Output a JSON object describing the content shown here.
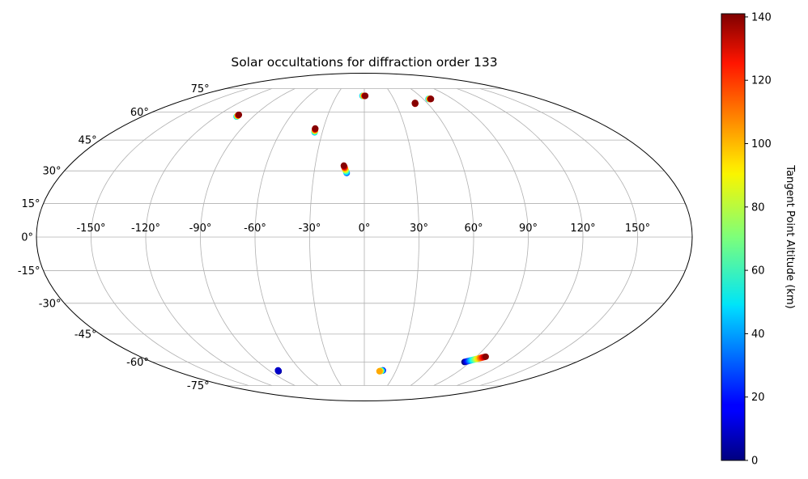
{
  "chart_data": {
    "type": "scatter",
    "projection": "mollweide",
    "title": "Solar occultations for diffraction order 133",
    "xlabel": "",
    "ylabel": "",
    "grid": true,
    "x_ticks": [
      "-150°",
      "-120°",
      "-90°",
      "-60°",
      "-30°",
      "0°",
      "30°",
      "60°",
      "90°",
      "120°",
      "150°"
    ],
    "y_ticks": [
      "75°",
      "60°",
      "45°",
      "30°",
      "15°",
      "0°",
      "-15°",
      "-30°",
      "-45°",
      "-60°",
      "-75°"
    ],
    "colorbar": {
      "label": "Tangent Point Altitude (km)",
      "colormap": "jet",
      "range": [
        0,
        141
      ],
      "ticks": [
        "0",
        "20",
        "40",
        "60",
        "80",
        "100",
        "120",
        "140"
      ]
    },
    "clusters": [
      {
        "lon_start": -103.5,
        "lat_start": 57.5,
        "lon_end": -103.5,
        "lat_end": 58.5,
        "alt_start": 40,
        "alt_end": 140
      },
      {
        "lon_start": -35.5,
        "lat_start": 49.0,
        "lon_end": -36.0,
        "lat_end": 51.0,
        "alt_start": 40,
        "alt_end": 140
      },
      {
        "lon_start": -10.5,
        "lat_start": 29.0,
        "lon_end": -12.5,
        "lat_end": 32.5,
        "alt_start": 30,
        "alt_end": 140
      },
      {
        "lon_start": -2.0,
        "lat_start": 70.0,
        "lon_end": 1.0,
        "lat_end": 70.0,
        "alt_start": 40,
        "alt_end": 140
      },
      {
        "lon_start": 48.0,
        "lat_start": 65.0,
        "lon_end": 48.5,
        "lat_end": 65.5,
        "alt_start": 135,
        "alt_end": 140
      },
      {
        "lon_start": 65.5,
        "lat_start": 68.0,
        "lon_end": 68.0,
        "lat_end": 68.0,
        "alt_start": 40,
        "alt_end": 140
      },
      {
        "lon_start": -82.0,
        "lat_start": -65.5,
        "lon_end": -81.5,
        "lat_end": -65.0,
        "alt_start": 0,
        "alt_end": 10
      },
      {
        "lon_start": 17.5,
        "lat_start": -65.0,
        "lon_end": 14.5,
        "lat_end": -65.5,
        "alt_start": 10,
        "alt_end": 100
      },
      {
        "lon_start": 85.0,
        "lat_start": -60.0,
        "lon_end": 97.5,
        "lat_end": -57.0,
        "alt_start": 0,
        "alt_end": 140
      }
    ]
  }
}
